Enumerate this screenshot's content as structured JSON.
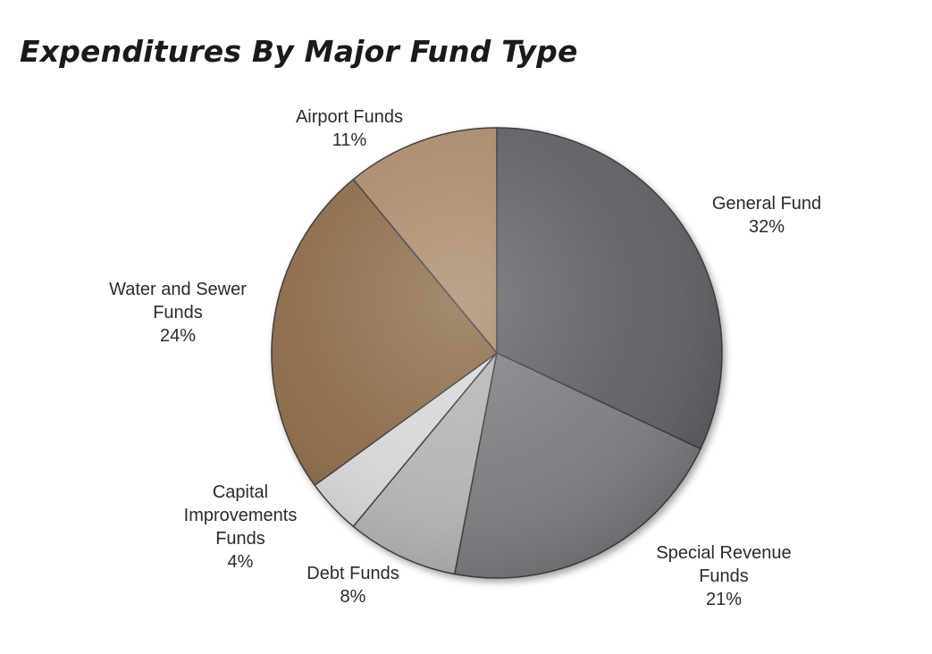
{
  "chart_data": {
    "type": "pie",
    "title": "Expenditures By Major Fund Type",
    "start_position": "12 o'clock, clockwise",
    "slices": [
      {
        "label": "General Fund",
        "value": 32,
        "display": "32%",
        "color": "#5f5f66"
      },
      {
        "label": "Special Revenue Funds",
        "value": 21,
        "display": "21%",
        "color": "#7c7c80"
      },
      {
        "label": "Debt Funds",
        "value": 8,
        "display": "8%",
        "color": "#b4b4b7"
      },
      {
        "label": "Capital Improvements Funds",
        "value": 4,
        "display": "4%",
        "color": "#d6d6d8"
      },
      {
        "label": "Water and Sewer Funds",
        "value": 24,
        "display": "24%",
        "color": "#8a6a47"
      },
      {
        "label": "Airport Funds",
        "value": 11,
        "display": "11%",
        "color": "#a9896b"
      }
    ]
  }
}
